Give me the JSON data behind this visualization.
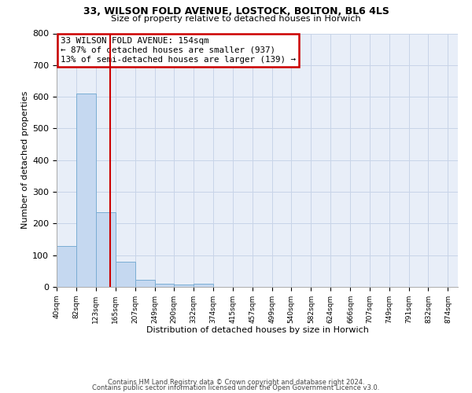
{
  "title_line1": "33, WILSON FOLD AVENUE, LOSTOCK, BOLTON, BL6 4LS",
  "title_line2": "Size of property relative to detached houses in Horwich",
  "xlabel": "Distribution of detached houses by size in Horwich",
  "ylabel": "Number of detached properties",
  "bar_edges": [
    40,
    82,
    123,
    165,
    207,
    249,
    290,
    332,
    374,
    415,
    457,
    499,
    540,
    582,
    624,
    666,
    707,
    749,
    791,
    832,
    874
  ],
  "bar_heights": [
    130,
    610,
    235,
    80,
    22,
    10,
    8,
    10,
    0,
    0,
    0,
    0,
    0,
    0,
    0,
    0,
    0,
    0,
    0,
    0
  ],
  "bar_color": "#c5d8f0",
  "bar_edgecolor": "#7aadd4",
  "grid_color": "#c8d4e8",
  "bg_color": "#e8eef8",
  "red_line_x": 154,
  "red_line_color": "#cc0000",
  "annotation_lines": [
    "33 WILSON FOLD AVENUE: 154sqm",
    "← 87% of detached houses are smaller (937)",
    "13% of semi-detached houses are larger (139) →"
  ],
  "annotation_box_color": "#cc0000",
  "ylim": [
    0,
    800
  ],
  "yticks": [
    0,
    100,
    200,
    300,
    400,
    500,
    600,
    700,
    800
  ],
  "tick_labels": [
    "40sqm",
    "82sqm",
    "123sqm",
    "165sqm",
    "207sqm",
    "249sqm",
    "290sqm",
    "332sqm",
    "374sqm",
    "415sqm",
    "457sqm",
    "499sqm",
    "540sqm",
    "582sqm",
    "624sqm",
    "666sqm",
    "707sqm",
    "749sqm",
    "791sqm",
    "832sqm",
    "874sqm"
  ],
  "footer_line1": "Contains HM Land Registry data © Crown copyright and database right 2024.",
  "footer_line2": "Contains public sector information licensed under the Open Government Licence v3.0."
}
